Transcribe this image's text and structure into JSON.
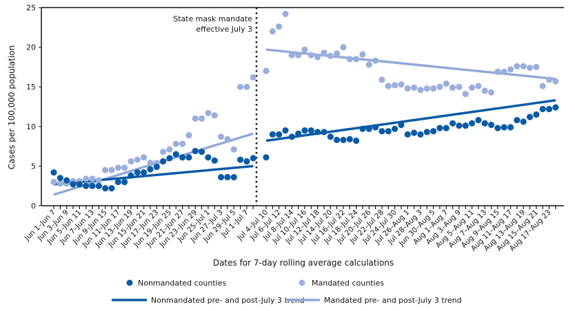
{
  "chart_data": {
    "type": "scatter",
    "ylabel": "Cases per 100,000 population",
    "xlabel": "Dates for 7-day rolling average calculations",
    "ylim": [
      0,
      25
    ],
    "yticks": [
      0,
      5,
      10,
      15,
      20,
      25
    ],
    "annotation": [
      "State mask mandate",
      "effective July 3"
    ],
    "colors": {
      "nonmandated": "#0b5aa6",
      "mandated": "#93a8d8"
    },
    "pre": {
      "tick_labels": [
        "Jun 1–Jun 7",
        "Jun 3–Jun 9",
        "Jun 5–Jun 11",
        "Jun 7–Jun 13",
        "Jun 9–Jun 15",
        "Jun 11–Jun 17",
        "Jun 13–Jun 19",
        "Jun 15–Jun 21",
        "Jun 17–Jun 23",
        "Jun 19–Jun 25",
        "Jun 21–Jun 27",
        "Jun 23–Jun 29",
        "Jun 25–Jul 1",
        "Jun 27–Jul 3",
        "Jun 29–Jul 5",
        "Jul 1–Jul 7"
      ],
      "nonmandated": [
        4.2,
        3.5,
        3.2,
        2.7,
        2.7,
        2.5,
        2.5,
        2.5,
        2.2,
        2.2,
        3.0,
        3.0,
        3.8,
        4.2,
        4.2,
        4.6,
        4.9,
        5.6,
        6.0,
        6.5,
        6.1,
        6.1,
        6.9,
        6.8,
        6.1,
        5.7,
        3.6,
        3.6,
        3.6,
        5.8,
        5.6,
        6.0
      ],
      "mandated": [
        3.0,
        2.8,
        2.8,
        3.1,
        3.1,
        3.4,
        3.4,
        3.2,
        4.5,
        4.5,
        4.8,
        4.8,
        5.6,
        5.8,
        6.1,
        5.4,
        5.4,
        6.8,
        7.1,
        7.8,
        7.8,
        8.9,
        11.0,
        11.0,
        11.7,
        11.4,
        8.7,
        8.4,
        7.1,
        15.0,
        15.0,
        16.2
      ],
      "nonmandated_trend": [
        2.7,
        5.0
      ],
      "mandated_trend": [
        1.4,
        9.1
      ]
    },
    "post": {
      "tick_labels": [
        "Jul 4–Jul 10",
        "Jul 6–Jul 12",
        "Jul 8–Jul 14",
        "Jul 10–Jul 16",
        "Jul 12–Jul 18",
        "Jul 14–Jul 20",
        "Jul 16–Jul 22",
        "Jul 18–Jul 24",
        "Jul 20–Jul 26",
        "Jul 22–Jul 28",
        "Jul 24–Jul 30",
        "Jul 26–Aug 1",
        "Jul 28–Aug 3",
        "Jun 30–Aug 5",
        "Aug 1–Aug 7",
        "Aug 3–Aug 9",
        "Aug 5–Aug 11",
        "Aug 7–Aug 13",
        "Aug 9–Aug 15",
        "Aug 11–Aug 17",
        "Aug 13–Aug 19",
        "Aug 15–Aug 21",
        "Aug 17–Aug 23"
      ],
      "nonmandated": [
        6.1,
        9.0,
        9.0,
        9.5,
        8.7,
        9.1,
        9.5,
        9.5,
        9.3,
        9.3,
        8.7,
        8.3,
        8.3,
        8.4,
        8.2,
        9.7,
        9.7,
        9.9,
        9.4,
        9.4,
        9.7,
        10.2,
        9.0,
        9.2,
        9.0,
        9.3,
        9.4,
        9.8,
        9.8,
        10.4,
        10.1,
        10.1,
        10.4,
        10.8,
        10.4,
        10.2,
        9.8,
        9.9,
        9.9,
        10.8,
        10.6,
        11.2,
        11.5,
        12.2,
        12.2,
        12.4
      ],
      "mandated": [
        17.0,
        22.0,
        22.6,
        24.2,
        19.0,
        19.0,
        19.7,
        19.0,
        18.75,
        19.3,
        18.9,
        19.2,
        20.0,
        18.5,
        18.5,
        19.1,
        17.8,
        18.3,
        15.9,
        15.1,
        15.2,
        15.3,
        14.8,
        14.9,
        14.6,
        14.8,
        14.8,
        15.0,
        15.4,
        14.9,
        15.0,
        14.1,
        14.9,
        15.1,
        14.5,
        14.3,
        16.9,
        16.9,
        17.2,
        17.6,
        17.6,
        17.4,
        17.5,
        15.1,
        15.9,
        15.7
      ],
      "nonmandated_trend": [
        8.2,
        13.3
      ],
      "mandated_trend": [
        19.7,
        16.0
      ]
    },
    "legend": {
      "placement": "bottom",
      "nonmandated_points": "Nonmandated counties",
      "mandated_points": "Mandated counties",
      "nonmandated_trend": "Nonmandated pre- and post-July 3 trend",
      "mandated_trend": "Mandated pre- and post-July 3 trend"
    }
  }
}
